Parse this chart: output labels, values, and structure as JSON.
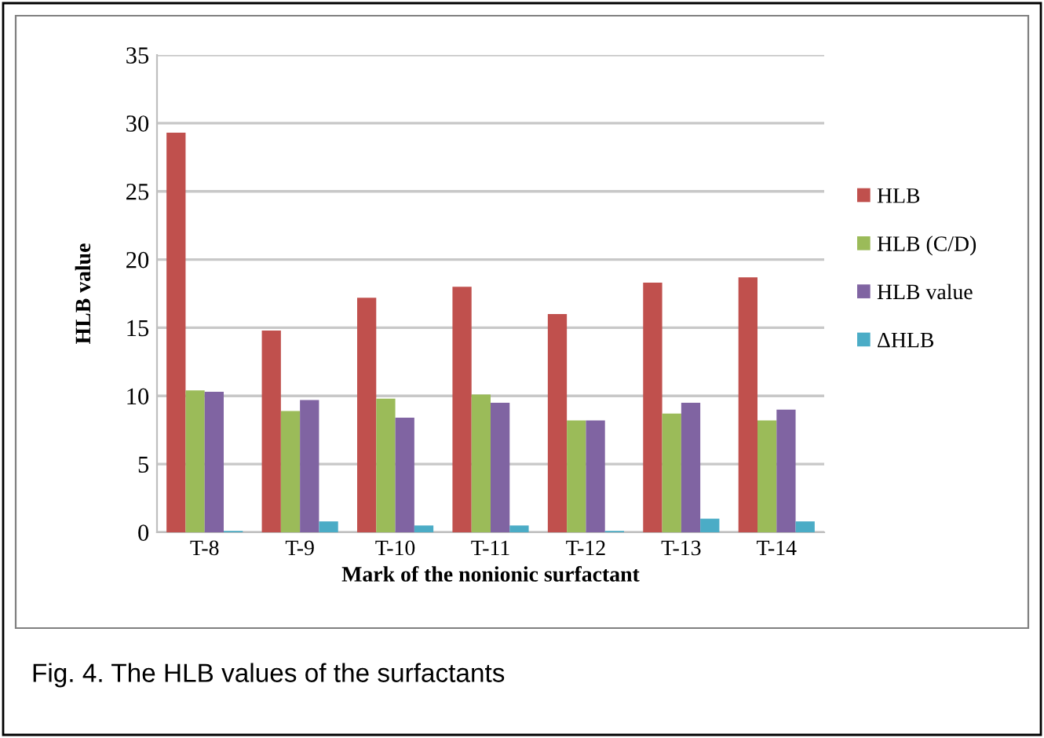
{
  "chart_data": {
    "type": "bar",
    "xlabel": "Mark of the nonionic surfactant",
    "ylabel": "HLB value",
    "categories": [
      "T-8",
      "T-9",
      "T-10",
      "T-11",
      "T-12",
      "T-13",
      "T-14"
    ],
    "series": [
      {
        "name": "HLB",
        "color": "#c0504d",
        "values": [
          29.3,
          14.8,
          17.2,
          18.0,
          16.0,
          18.3,
          18.7
        ]
      },
      {
        "name": "HLB (C/D)",
        "color": "#9bbb59",
        "values": [
          10.4,
          8.9,
          9.8,
          10.1,
          8.2,
          8.7,
          8.2
        ]
      },
      {
        "name": "HLB value",
        "color": "#8064a2",
        "values": [
          10.3,
          9.7,
          8.4,
          9.5,
          8.2,
          9.5,
          9.0
        ]
      },
      {
        "name": "ΔHLB",
        "color": "#4bacc6",
        "values": [
          0.1,
          0.8,
          0.5,
          0.5,
          0.1,
          1.0,
          0.8
        ]
      }
    ],
    "ylim": [
      0,
      35
    ],
    "yticks": [
      0,
      5,
      10,
      15,
      20,
      25,
      30,
      35
    ],
    "grid": "y",
    "legend": "right",
    "annotations": [
      "Fig. 4. The HLB values of the surfactants"
    ]
  }
}
